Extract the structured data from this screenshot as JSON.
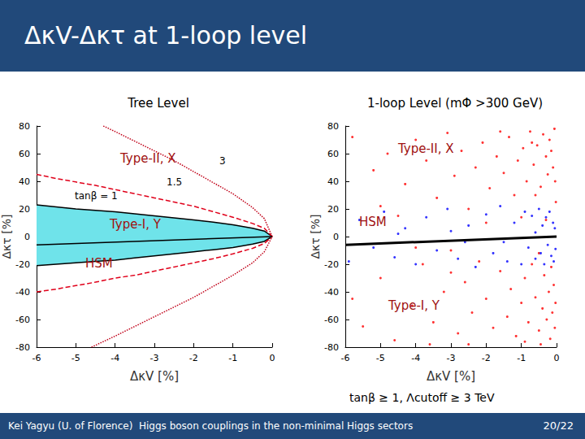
{
  "header": {
    "title": "ΔκV-Δκτ at 1-loop level"
  },
  "footer": {
    "author": "Kei Yagyu (U. of Florence)",
    "talk": "Higgs boson couplings in the non-minimal Higgs sectors",
    "page": "20/22"
  },
  "note": "tanβ ≥ 1, Λcutoff ≥ 3 TeV",
  "chart_data": [
    {
      "type": "line",
      "title": "Tree Level",
      "xlabel": "ΔκV [%]",
      "ylabel": "Δκτ [%]",
      "xlim": [
        -6,
        0
      ],
      "xticks": [
        -6,
        -5,
        -4,
        -3,
        -2,
        -1,
        0
      ],
      "ylim": [
        -80,
        80
      ],
      "yticks": [
        -80,
        -60,
        -40,
        -20,
        0,
        20,
        40,
        60,
        80
      ],
      "grid": false,
      "annotations": [
        "Type-II, X",
        "3",
        "1.5",
        "tanβ = 1",
        "Type-I, Y",
        "HSM"
      ],
      "series": [
        {
          "type": "area",
          "color": "#6fe3ea",
          "line_style": "solid",
          "x": [
            -6,
            -5.5,
            -5,
            -4.5,
            -4,
            -3.5,
            -3,
            -2.5,
            -2,
            -1.5,
            -1,
            -0.5,
            -0.2,
            0
          ],
          "values": [
            23,
            21.5,
            20,
            19,
            18,
            16.5,
            15,
            13.5,
            12,
            10.5,
            8.5,
            6,
            4,
            0
          ]
        },
        {
          "type": "area",
          "color": "#6fe3ea",
          "line_style": "solid",
          "x": [
            -6,
            -5.5,
            -5,
            -4.5,
            -4,
            -3.5,
            -3,
            -2.5,
            -2,
            -1.5,
            -1,
            -0.5,
            -0.2,
            0
          ],
          "values": [
            -21,
            -20,
            -19,
            -18,
            -17,
            -15.5,
            -14,
            -12.5,
            -11,
            -9.5,
            -8,
            -5.5,
            -3.5,
            0
          ]
        },
        {
          "type": "line",
          "color": "#e0001a",
          "line_style": "dashed",
          "x": [
            -6,
            -5.5,
            -5,
            -4.5,
            -4,
            -3.5,
            -3,
            -2.5,
            -2,
            -1.5,
            -1,
            -0.5,
            -0.2,
            0
          ],
          "values": [
            45,
            42,
            39.5,
            37,
            34,
            31,
            28,
            25,
            22,
            18,
            14,
            9.5,
            6,
            0
          ]
        },
        {
          "type": "line",
          "color": "#e0001a",
          "line_style": "dashed",
          "x": [
            -6,
            -5.5,
            -5,
            -4.5,
            -4,
            -3.5,
            -3,
            -2.5,
            -2,
            -1.5,
            -1,
            -0.5,
            -0.2,
            0
          ],
          "values": [
            -40,
            -38,
            -35.5,
            -33,
            -30,
            -28,
            -25,
            -22,
            -19,
            -16,
            -12.5,
            -8.5,
            -5,
            0
          ]
        },
        {
          "type": "line",
          "color": "#c00018",
          "line_style": "dotted",
          "x": [
            -4.3,
            -4,
            -3.5,
            -3,
            -2.5,
            -2,
            -1.5,
            -1,
            -0.5,
            -0.2,
            0
          ],
          "values": [
            80,
            76,
            69,
            62,
            55,
            47,
            39,
            31,
            21,
            13,
            0
          ]
        },
        {
          "type": "line",
          "color": "#c00018",
          "line_style": "dotted",
          "x": [
            -4.6,
            -4,
            -3.5,
            -3,
            -2.5,
            -2,
            -1.5,
            -1,
            -0.5,
            -0.2,
            0
          ],
          "values": [
            -80,
            -72,
            -65,
            -58,
            -51,
            -44,
            -36,
            -28,
            -19,
            -11,
            0
          ]
        },
        {
          "type": "line",
          "color": "#000000",
          "line_style": "solid",
          "x": [
            -6,
            0
          ],
          "values": [
            -6,
            0
          ]
        }
      ]
    },
    {
      "type": "scatter",
      "title": "1-loop Level (mΦ >300 GeV)",
      "xlabel": "ΔκV [%]",
      "ylabel": "Δκτ [%]",
      "xlim": [
        -6,
        0
      ],
      "xticks": [
        -6,
        -5,
        -4,
        -3,
        -2,
        -1,
        0
      ],
      "ylim": [
        -80,
        80
      ],
      "yticks": [
        -80,
        -60,
        -40,
        -20,
        0,
        20,
        40,
        60,
        80
      ],
      "grid": false,
      "annotations": [
        "Type-II, X",
        "HSM",
        "Type-I, Y"
      ],
      "series": [
        {
          "type": "scatter",
          "color": "#ff0000",
          "marker": "circle",
          "x": [
            -5.8,
            -5.5,
            -5.2,
            -5.0,
            -4.8,
            -4.6,
            -4.5,
            -4.3,
            -4.1,
            -4.0,
            -3.8,
            -3.7,
            -3.5,
            -3.4,
            -3.2,
            -3.1,
            -3.0,
            -2.9,
            -2.8,
            -2.7,
            -2.6,
            -2.5,
            -2.4,
            -2.3,
            -2.2,
            -2.1,
            -2.0,
            -1.9,
            -1.8,
            -1.7,
            -1.6,
            -1.5,
            -1.4,
            -1.35,
            -1.3,
            -1.2,
            -1.15,
            -1.1,
            -1.0,
            -0.95,
            -0.9,
            -0.85,
            -0.8,
            -0.75,
            -0.7,
            -0.65,
            -0.6,
            -0.55,
            -0.5,
            -0.45,
            -0.4,
            -0.38,
            -0.35,
            -0.3,
            -0.28,
            -0.25,
            -0.22,
            -0.2,
            -0.18,
            -0.15,
            -0.12,
            -0.1,
            -0.08,
            -0.06,
            -0.05,
            -0.04,
            -0.03,
            -0.02,
            -0.5,
            -1.0,
            -2.0,
            -3.0,
            -4.0,
            -5.0,
            -5.8,
            -0.3,
            -0.6,
            -0.9,
            -1.6,
            -2.5,
            -3.6,
            -0.15,
            -0.7,
            -0.45
          ],
          "values": [
            72,
            -65,
            48,
            -30,
            60,
            -75,
            15,
            38,
            -50,
            70,
            -20,
            55,
            -62,
            28,
            -40,
            75,
            -10,
            44,
            -70,
            62,
            -33,
            20,
            -55,
            50,
            -18,
            68,
            -45,
            35,
            -66,
            58,
            -25,
            46,
            -58,
            72,
            -38,
            30,
            -72,
            55,
            -48,
            64,
            -30,
            40,
            -62,
            76,
            -20,
            52,
            -44,
            66,
            -68,
            36,
            -52,
            74,
            -28,
            58,
            -60,
            45,
            -40,
            70,
            -74,
            62,
            -55,
            50,
            -35,
            78,
            -66,
            40,
            -48,
            25,
            -12,
            14,
            10,
            -26,
            -8,
            22,
            -45,
            12,
            30,
            -76,
            76,
            -78,
            -78,
            -22,
            68,
            -78
          ]
        },
        {
          "type": "scatter",
          "color": "#0000ff",
          "marker": "circle",
          "x": [
            -5.6,
            -5.2,
            -4.9,
            -4.6,
            -4.3,
            -4.0,
            -3.7,
            -3.4,
            -3.1,
            -2.8,
            -2.5,
            -2.3,
            -2.0,
            -1.8,
            -1.6,
            -1.4,
            -1.2,
            -1.0,
            -0.9,
            -0.8,
            -0.7,
            -0.6,
            -0.5,
            -0.45,
            -0.4,
            -0.35,
            -0.3,
            -0.25,
            -0.2,
            -0.15,
            -0.1,
            -0.08,
            -0.05,
            -0.03,
            -5.9,
            -3.0,
            -1.5,
            -0.6,
            -2.6,
            -4.5
          ],
          "values": [
            12,
            -8,
            18,
            -15,
            6,
            -20,
            14,
            -10,
            20,
            -16,
            8,
            -22,
            16,
            -12,
            22,
            -18,
            10,
            -20,
            18,
            -8,
            15,
            -16,
            20,
            -12,
            8,
            -20,
            14,
            -6,
            18,
            -14,
            10,
            -18,
            6,
            -9,
            -18,
            4,
            -4,
            3,
            -4,
            2
          ]
        },
        {
          "type": "line",
          "color": "#000000",
          "line_style": "solid",
          "x": [
            -6,
            0
          ],
          "values": [
            -6,
            0
          ]
        }
      ]
    }
  ]
}
